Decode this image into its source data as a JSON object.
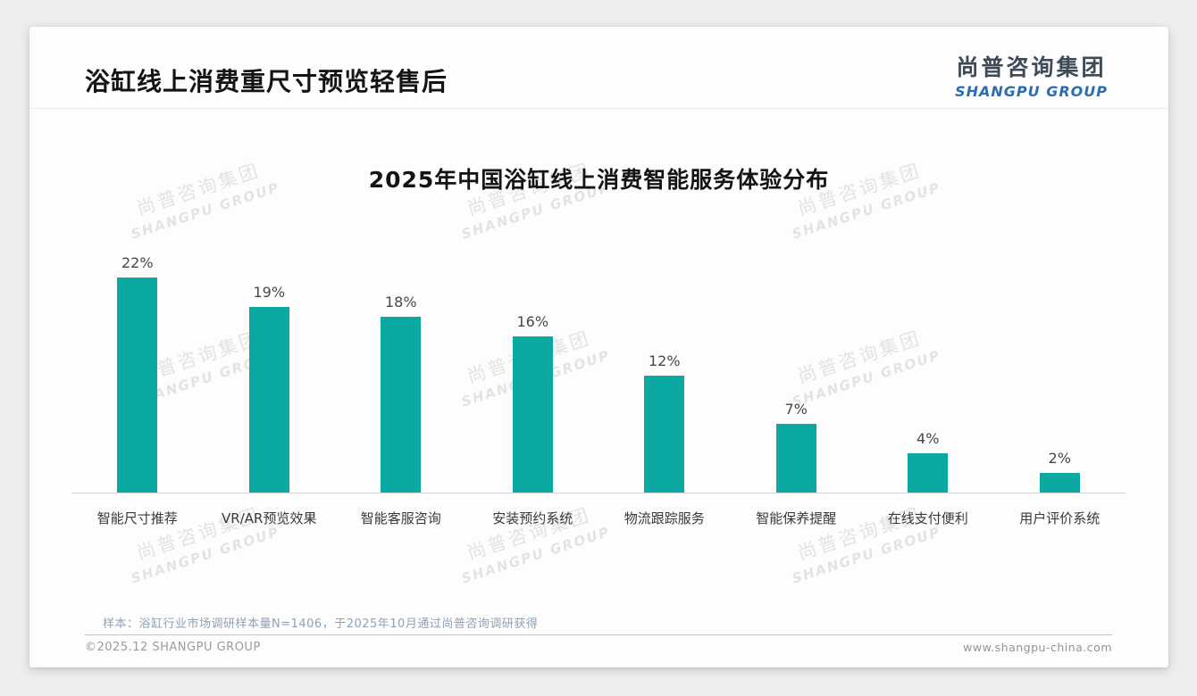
{
  "page": {
    "title": "浴缸线上消费重尺寸预览轻售后",
    "logo": {
      "cn": "尚普咨询集团",
      "en": "SHANGPU GROUP"
    },
    "watermark": {
      "line1": "尚普咨询集团",
      "line2": "SHANGPU GROUP"
    },
    "footer": {
      "note": "样本：浴缸行业市场调研样本量N=1406，于2025年10月通过尚普咨询调研获得",
      "copyright": "©2025.12 SHANGPU GROUP",
      "website": "www.shangpu-china.com"
    }
  },
  "chart_data": {
    "type": "bar",
    "title": "2025年中国浴缸线上消费智能服务体验分布",
    "categories": [
      "智能尺寸推荐",
      "VR/AR预览效果",
      "智能客服咨询",
      "安装预约系统",
      "物流跟踪服务",
      "智能保养提醒",
      "在线支付便利",
      "用户评价系统"
    ],
    "values": [
      22,
      19,
      18,
      16,
      12,
      7,
      4,
      2
    ],
    "unit": "%",
    "data_labels": true,
    "grid": false,
    "legend": false,
    "xlabel": "",
    "ylabel": "",
    "ylim": [
      0,
      24
    ],
    "bar_color": "#0ba9a2",
    "label_color": "#484848",
    "axis_line_color": "#d5d5d5"
  }
}
